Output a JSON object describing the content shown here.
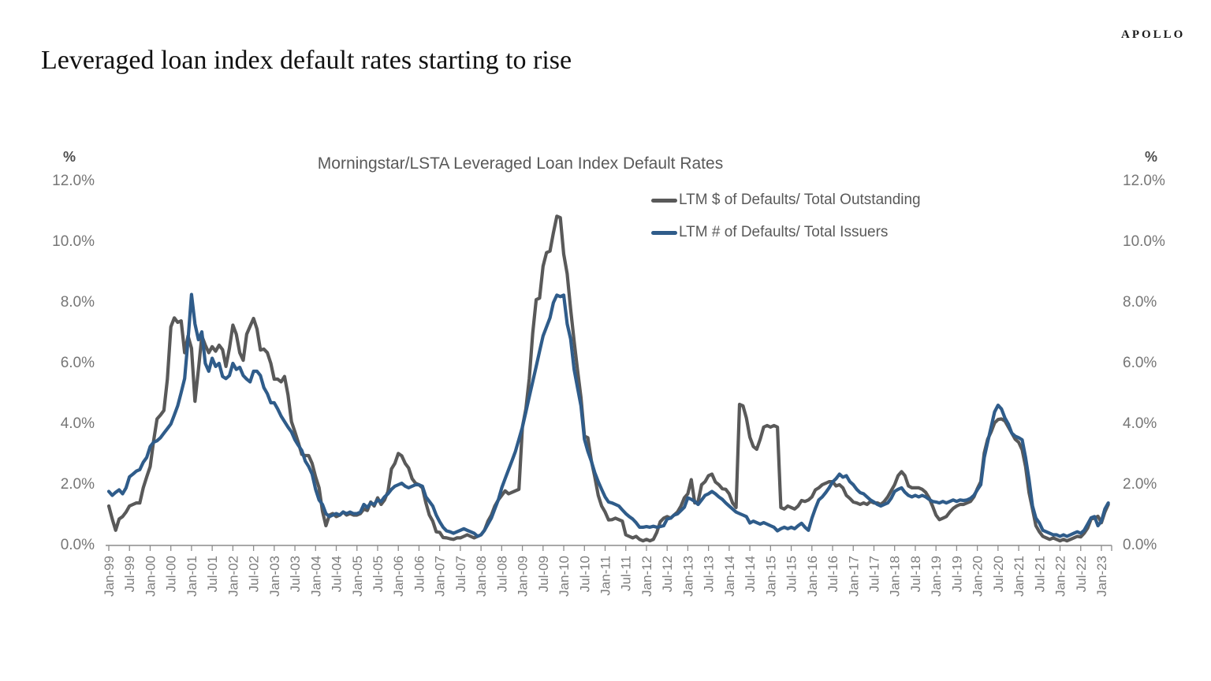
{
  "header": {
    "logo": "APOLLO",
    "title": "Leveraged loan index default rates starting to rise"
  },
  "chart": {
    "title": "Morningstar/LSTA Leveraged Loan Index Default Rates",
    "y_axis_unit": "%",
    "legend": [
      {
        "label": "LTM $ of Defaults/ Total Outstanding",
        "color": "#595959"
      },
      {
        "label": "LTM # of Defaults/ Total Issuers",
        "color": "#2F5C8A"
      }
    ]
  },
  "chart_data": {
    "type": "line",
    "title": "Morningstar/LSTA Leveraged Loan Index Default Rates",
    "x_start": "Jan-99",
    "x_end": "Mar-23",
    "x_frequency": "monthly",
    "ylim": [
      0,
      12
    ],
    "grid": false,
    "legend_position": "upper-right-inside",
    "axis_color": "#8c8c8c",
    "y_ticks": [
      {
        "label": "0.0%",
        "value": 0
      },
      {
        "label": "2.0%",
        "value": 2
      },
      {
        "label": "4.0%",
        "value": 4
      },
      {
        "label": "6.0%",
        "value": 6
      },
      {
        "label": "8.0%",
        "value": 8
      },
      {
        "label": "10.0%",
        "value": 10
      },
      {
        "label": "12.0%",
        "value": 12
      }
    ],
    "x_tick_labels": [
      "Jan-99",
      "Jul-99",
      "Jan-00",
      "Jul-00",
      "Jan-01",
      "Jul-01",
      "Jan-02",
      "Jul-02",
      "Jan-03",
      "Jul-03",
      "Jan-04",
      "Jul-04",
      "Jan-05",
      "Jul-05",
      "Jan-06",
      "Jul-06",
      "Jan-07",
      "Jul-07",
      "Jan-08",
      "Jul-08",
      "Jan-09",
      "Jul-09",
      "Jan-10",
      "Jul-10",
      "Jan-11",
      "Jul-11",
      "Jan-12",
      "Jul-12",
      "Jan-13",
      "Jul-13",
      "Jan-14",
      "Jul-14",
      "Jan-15",
      "Jul-15",
      "Jan-16",
      "Jul-16",
      "Jan-17",
      "Jul-17",
      "Jan-18",
      "Jul-18",
      "Jan-19",
      "Jul-19",
      "Jan-20",
      "Jul-20",
      "Jan-21",
      "Jul-21",
      "Jan-22",
      "Jul-22",
      "Jan-23"
    ],
    "series": [
      {
        "name": "LTM $ of Defaults/ Total Outstanding",
        "color": "#595959",
        "values": [
          1.3,
          0.87,
          0.5,
          0.87,
          0.95,
          1.1,
          1.3,
          1.35,
          1.4,
          1.4,
          1.9,
          2.26,
          2.6,
          3.44,
          4.17,
          4.3,
          4.45,
          5.48,
          7.2,
          7.5,
          7.35,
          7.4,
          6.35,
          6.9,
          6.5,
          4.75,
          5.8,
          6.9,
          6.6,
          6.35,
          6.55,
          6.4,
          6.6,
          6.45,
          5.9,
          6.5,
          7.26,
          6.96,
          6.35,
          6.1,
          6.96,
          7.22,
          7.48,
          7.13,
          6.44,
          6.47,
          6.35,
          6.0,
          5.48,
          5.48,
          5.39,
          5.57,
          4.96,
          4.08,
          3.74,
          3.39,
          3.0,
          2.96,
          2.96,
          2.7,
          2.26,
          1.9,
          1.13,
          0.65,
          1.0,
          1.05,
          0.95,
          1.0,
          1.1,
          1.0,
          1.05,
          1.0,
          1.0,
          1.05,
          1.2,
          1.15,
          1.43,
          1.3,
          1.57,
          1.35,
          1.5,
          1.78,
          2.52,
          2.7,
          3.03,
          2.95,
          2.7,
          2.55,
          2.2,
          2.05,
          2.0,
          1.9,
          1.4,
          1.0,
          0.8,
          0.45,
          0.43,
          0.26,
          0.25,
          0.22,
          0.2,
          0.25,
          0.25,
          0.3,
          0.35,
          0.3,
          0.25,
          0.3,
          0.35,
          0.5,
          0.8,
          1.0,
          1.3,
          1.5,
          1.65,
          1.8,
          1.7,
          1.75,
          1.8,
          1.85,
          3.9,
          4.5,
          5.5,
          7.0,
          8.1,
          8.15,
          9.2,
          9.65,
          9.7,
          10.3,
          10.85,
          10.8,
          9.6,
          8.95,
          7.78,
          6.73,
          5.79,
          4.87,
          3.6,
          3.55,
          2.8,
          2.26,
          1.65,
          1.3,
          1.1,
          0.84,
          0.85,
          0.9,
          0.85,
          0.8,
          0.35,
          0.3,
          0.25,
          0.3,
          0.2,
          0.15,
          0.2,
          0.15,
          0.2,
          0.43,
          0.78,
          0.9,
          0.95,
          0.9,
          1.0,
          1.1,
          1.3,
          1.57,
          1.7,
          2.17,
          1.4,
          1.45,
          2.0,
          2.1,
          2.3,
          2.35,
          2.09,
          2.0,
          1.87,
          1.85,
          1.7,
          1.4,
          1.25,
          4.65,
          4.6,
          4.2,
          3.57,
          3.26,
          3.17,
          3.5,
          3.9,
          3.95,
          3.9,
          3.95,
          3.9,
          1.25,
          1.2,
          1.3,
          1.25,
          1.2,
          1.3,
          1.48,
          1.45,
          1.5,
          1.6,
          1.83,
          1.9,
          2.0,
          2.05,
          2.1,
          2.1,
          1.96,
          2.0,
          1.9,
          1.65,
          1.55,
          1.43,
          1.4,
          1.35,
          1.4,
          1.35,
          1.45,
          1.4,
          1.4,
          1.35,
          1.45,
          1.6,
          1.8,
          2.0,
          2.3,
          2.43,
          2.3,
          1.96,
          1.9,
          1.9,
          1.9,
          1.85,
          1.75,
          1.57,
          1.3,
          1.0,
          0.85,
          0.9,
          0.95,
          1.1,
          1.22,
          1.3,
          1.35,
          1.35,
          1.4,
          1.45,
          1.6,
          1.87,
          2.1,
          3.05,
          3.5,
          3.74,
          4.04,
          4.15,
          4.17,
          4.1,
          3.9,
          3.7,
          3.5,
          3.4,
          3.15,
          2.6,
          1.74,
          1.2,
          0.65,
          0.45,
          0.3,
          0.25,
          0.2,
          0.25,
          0.2,
          0.15,
          0.2,
          0.15,
          0.2,
          0.25,
          0.3,
          0.28,
          0.4,
          0.57,
          0.87,
          0.9,
          0.96,
          0.75,
          1.1,
          1.35
        ]
      },
      {
        "name": "LTM # of Defaults/ Total Issuers",
        "color": "#2F5C8A",
        "values": [
          1.78,
          1.65,
          1.75,
          1.83,
          1.7,
          1.9,
          2.26,
          2.35,
          2.45,
          2.5,
          2.74,
          2.9,
          3.26,
          3.4,
          3.45,
          3.55,
          3.7,
          3.85,
          4.0,
          4.3,
          4.6,
          5.04,
          5.5,
          6.78,
          8.27,
          7.3,
          6.78,
          7.04,
          6.0,
          5.74,
          6.17,
          5.9,
          6.0,
          5.57,
          5.5,
          5.6,
          6.0,
          5.8,
          5.87,
          5.6,
          5.48,
          5.39,
          5.74,
          5.74,
          5.6,
          5.2,
          5.0,
          4.7,
          4.7,
          4.5,
          4.26,
          4.08,
          3.9,
          3.74,
          3.48,
          3.3,
          3.13,
          2.78,
          2.6,
          2.35,
          1.85,
          1.5,
          1.35,
          1.05,
          0.95,
          1.0,
          1.05,
          1.0,
          1.1,
          1.05,
          1.1,
          1.05,
          1.05,
          1.1,
          1.35,
          1.25,
          1.4,
          1.35,
          1.5,
          1.45,
          1.6,
          1.7,
          1.85,
          1.95,
          2.0,
          2.05,
          1.95,
          1.9,
          1.95,
          2.0,
          2.0,
          1.95,
          1.6,
          1.45,
          1.3,
          1.0,
          0.78,
          0.6,
          0.48,
          0.45,
          0.4,
          0.45,
          0.5,
          0.55,
          0.5,
          0.45,
          0.4,
          0.3,
          0.35,
          0.5,
          0.7,
          0.9,
          1.2,
          1.5,
          1.9,
          2.2,
          2.5,
          2.8,
          3.1,
          3.5,
          3.9,
          4.4,
          4.9,
          5.4,
          5.9,
          6.4,
          6.9,
          7.2,
          7.5,
          8.0,
          8.25,
          8.2,
          8.25,
          7.3,
          6.8,
          5.8,
          5.2,
          4.6,
          3.5,
          3.1,
          2.78,
          2.4,
          2.1,
          1.85,
          1.6,
          1.43,
          1.4,
          1.35,
          1.3,
          1.17,
          1.05,
          0.95,
          0.87,
          0.75,
          0.6,
          0.6,
          0.62,
          0.6,
          0.63,
          0.6,
          0.62,
          0.65,
          0.87,
          0.9,
          1.0,
          1.04,
          1.15,
          1.26,
          1.57,
          1.52,
          1.45,
          1.35,
          1.5,
          1.65,
          1.7,
          1.78,
          1.7,
          1.6,
          1.52,
          1.4,
          1.3,
          1.2,
          1.1,
          1.05,
          1.0,
          0.95,
          0.74,
          0.8,
          0.75,
          0.7,
          0.75,
          0.7,
          0.65,
          0.6,
          0.48,
          0.55,
          0.6,
          0.55,
          0.6,
          0.55,
          0.65,
          0.73,
          0.6,
          0.5,
          0.9,
          1.22,
          1.5,
          1.6,
          1.74,
          1.9,
          2.09,
          2.2,
          2.35,
          2.25,
          2.3,
          2.1,
          2.0,
          1.85,
          1.74,
          1.7,
          1.6,
          1.5,
          1.43,
          1.35,
          1.3,
          1.35,
          1.4,
          1.55,
          1.78,
          1.85,
          1.9,
          1.75,
          1.65,
          1.6,
          1.65,
          1.6,
          1.65,
          1.6,
          1.52,
          1.45,
          1.43,
          1.4,
          1.45,
          1.4,
          1.45,
          1.5,
          1.45,
          1.5,
          1.48,
          1.5,
          1.55,
          1.65,
          1.83,
          2.0,
          2.9,
          3.4,
          3.9,
          4.4,
          4.62,
          4.5,
          4.2,
          4.0,
          3.7,
          3.6,
          3.55,
          3.48,
          2.9,
          2.17,
          1.3,
          0.9,
          0.74,
          0.5,
          0.45,
          0.4,
          0.35,
          0.35,
          0.3,
          0.35,
          0.3,
          0.35,
          0.4,
          0.45,
          0.4,
          0.5,
          0.7,
          0.91,
          0.95,
          0.65,
          0.8,
          1.2,
          1.4
        ]
      }
    ]
  }
}
